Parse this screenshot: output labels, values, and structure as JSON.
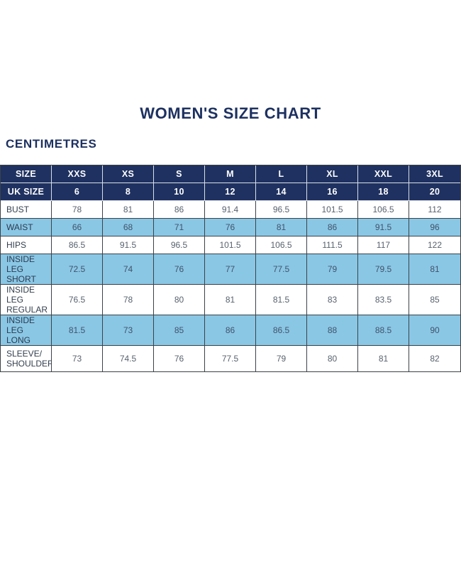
{
  "page": {
    "title": "WOMEN'S SIZE CHART",
    "unit_label": "CENTIMETRES"
  },
  "colors": {
    "header_navy": "#1f3160",
    "row_blue": "#8ac7e5",
    "row_white": "#ffffff",
    "grid_border": "#3c4247",
    "title_text": "#1d3160"
  },
  "chart_data": {
    "type": "table",
    "header": [
      "SIZE",
      "XXS",
      "XS",
      "S",
      "M",
      "L",
      "XL",
      "XXL",
      "3XL"
    ],
    "uk_size": {
      "label": "UK SIZE",
      "values": [
        "6",
        "8",
        "10",
        "12",
        "14",
        "16",
        "18",
        "20"
      ]
    },
    "rows": [
      {
        "label": "BUST",
        "values": [
          "78",
          "81",
          "86",
          "91.4",
          "96.5",
          "101.5",
          "106.5",
          "112"
        ]
      },
      {
        "label": "WAIST",
        "values": [
          "66",
          "68",
          "71",
          "76",
          "81",
          "86",
          "91.5",
          "96"
        ]
      },
      {
        "label": "HIPS",
        "values": [
          "86.5",
          "91.5",
          "96.5",
          "101.5",
          "106.5",
          "111.5",
          "117",
          "122"
        ]
      },
      {
        "label": "INSIDE LEG\nSHORT",
        "values": [
          "72.5",
          "74",
          "76",
          "77",
          "77.5",
          "79",
          "79.5",
          "81"
        ]
      },
      {
        "label": "INSIDE LEG\nREGULAR",
        "values": [
          "76.5",
          "78",
          "80",
          "81",
          "81.5",
          "83",
          "83.5",
          "85"
        ]
      },
      {
        "label": "INSIDE LEG\nLONG",
        "values": [
          "81.5",
          "73",
          "85",
          "86",
          "86.5",
          "88",
          "88.5",
          "90"
        ]
      },
      {
        "label": "SLEEVE/\nSHOULDER",
        "values": [
          "73",
          "74.5",
          "76",
          "77.5",
          "79",
          "80",
          "81",
          "82"
        ]
      }
    ]
  }
}
